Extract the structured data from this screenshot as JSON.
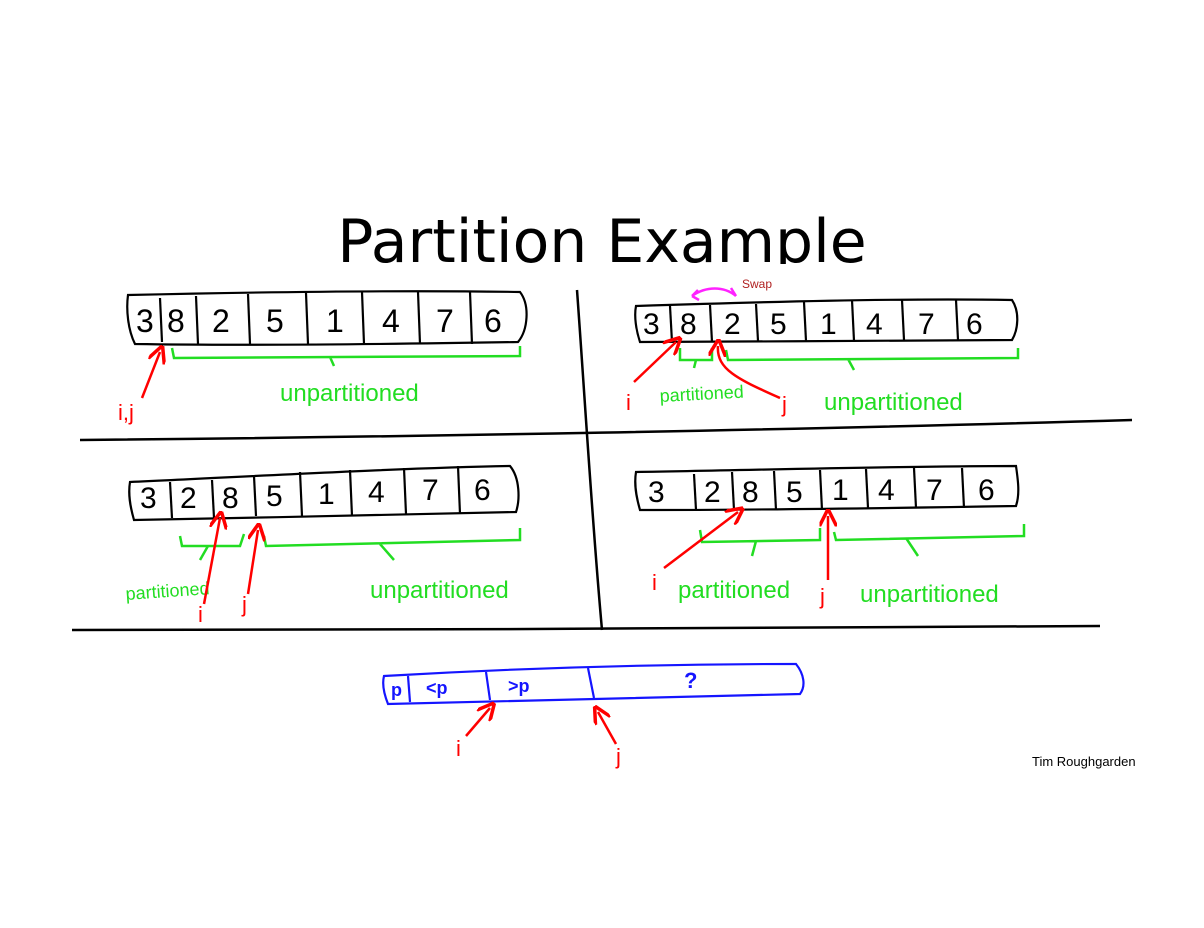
{
  "title": "Partition Example",
  "author": "Tim Roughgarden",
  "colors": {
    "ink": "#000000",
    "pointer": "#ff0000",
    "region": "#22dd22",
    "invariant": "#1515ff",
    "swap": "#ff22ff",
    "swap_label": "#b02020"
  },
  "panels": {
    "top_left": {
      "cells": [
        "3",
        "8",
        "2",
        "5",
        "1",
        "4",
        "7",
        "6"
      ],
      "pointer_label": "i,j",
      "region_labels": [
        "unpartitioned"
      ]
    },
    "top_right": {
      "swap_label": "Swap",
      "cells": [
        "3",
        "8",
        "2",
        "5",
        "1",
        "4",
        "7",
        "6"
      ],
      "pointer_labels": [
        "i",
        "j"
      ],
      "region_labels": [
        "partitioned",
        "unpartitioned"
      ]
    },
    "bottom_left": {
      "cells": [
        "3",
        "2",
        "8",
        "5",
        "1",
        "4",
        "7",
        "6"
      ],
      "pointer_labels": [
        "i",
        "j"
      ],
      "region_labels": [
        "partitioned",
        "unpartitioned"
      ]
    },
    "bottom_right": {
      "cells": [
        "3",
        "2",
        "8",
        "5",
        "1",
        "4",
        "7",
        "6"
      ],
      "pointer_labels": [
        "i",
        "j"
      ],
      "region_labels": [
        "partitioned",
        "unpartitioned"
      ]
    }
  },
  "invariant": {
    "segments": [
      "p",
      "<p",
      ">p",
      "?"
    ],
    "pointer_labels": [
      "i",
      "j"
    ]
  }
}
